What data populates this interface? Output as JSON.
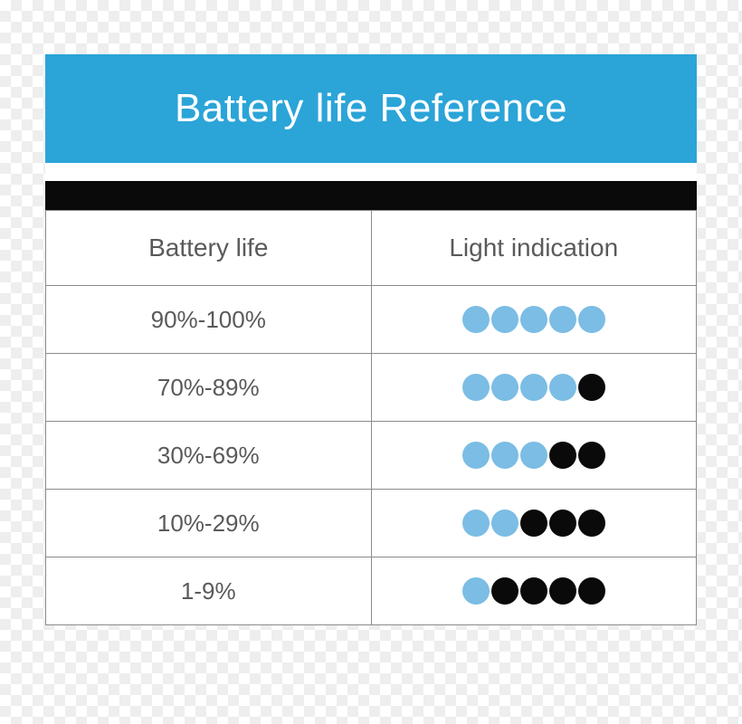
{
  "colors": {
    "header_bg": "#2ba4d8",
    "black_bar": "#0a0a0a",
    "table_border": "#8b8b8b",
    "text": "#5a5a5a",
    "title_text": "#ffffff",
    "dot_blue": "#7bbde4",
    "dot_black": "#0a0a0a"
  },
  "layout": {
    "title_fontsize": 44,
    "header_fontsize": 28,
    "cell_fontsize": 26,
    "dot_diameter": 30,
    "dot_gap": 2
  },
  "title": "Battery life Reference",
  "table": {
    "columns": [
      "Battery life",
      "Light indication"
    ],
    "rows": [
      {
        "range": "90%-100%",
        "dots": [
          "blue",
          "blue",
          "blue",
          "blue",
          "blue"
        ]
      },
      {
        "range": "70%-89%",
        "dots": [
          "blue",
          "blue",
          "blue",
          "blue",
          "black"
        ]
      },
      {
        "range": "30%-69%",
        "dots": [
          "blue",
          "blue",
          "blue",
          "black",
          "black"
        ]
      },
      {
        "range": "10%-29%",
        "dots": [
          "blue",
          "blue",
          "black",
          "black",
          "black"
        ]
      },
      {
        "range": "1-9%",
        "dots": [
          "blue",
          "black",
          "black",
          "black",
          "black"
        ]
      }
    ]
  }
}
